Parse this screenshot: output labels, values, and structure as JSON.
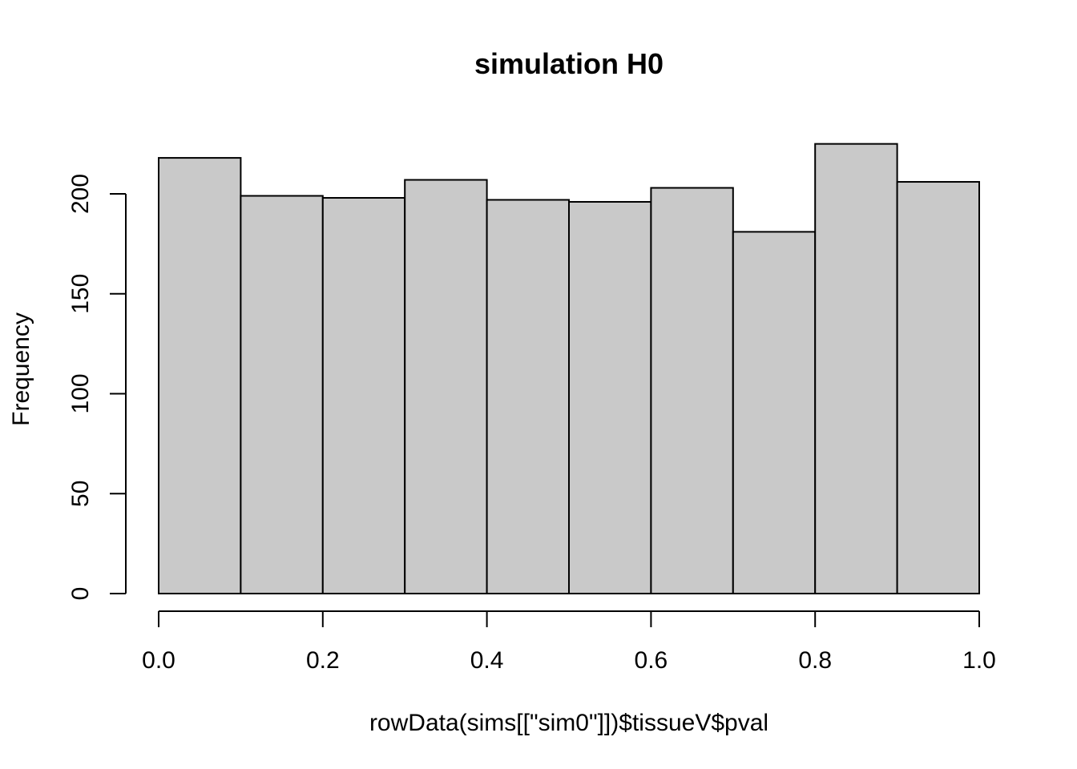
{
  "chart_data": {
    "type": "bar",
    "title": "simulation H0",
    "xlabel": "rowData(sims[[\"sim0\"]])$tissueV$pval",
    "ylabel": "Frequency",
    "bins": [
      {
        "x0": 0.0,
        "x1": 0.1,
        "count": 218
      },
      {
        "x0": 0.1,
        "x1": 0.2,
        "count": 199
      },
      {
        "x0": 0.2,
        "x1": 0.3,
        "count": 198
      },
      {
        "x0": 0.3,
        "x1": 0.4,
        "count": 207
      },
      {
        "x0": 0.4,
        "x1": 0.5,
        "count": 197
      },
      {
        "x0": 0.5,
        "x1": 0.6,
        "count": 196
      },
      {
        "x0": 0.6,
        "x1": 0.7,
        "count": 203
      },
      {
        "x0": 0.7,
        "x1": 0.8,
        "count": 181
      },
      {
        "x0": 0.8,
        "x1": 0.9,
        "count": 225
      },
      {
        "x0": 0.9,
        "x1": 1.0,
        "count": 206
      }
    ],
    "xlim": [
      0.0,
      1.0
    ],
    "ylim": [
      0,
      225
    ],
    "x_ticks": [
      0.0,
      0.2,
      0.4,
      0.6,
      0.8,
      1.0
    ],
    "x_tick_labels": [
      "0.0",
      "0.2",
      "0.4",
      "0.6",
      "0.8",
      "1.0"
    ],
    "y_ticks": [
      0,
      50,
      100,
      150,
      200
    ],
    "y_tick_labels": [
      "0",
      "50",
      "100",
      "150",
      "200"
    ],
    "bar_fill": "#c9c9c9",
    "bar_stroke": "#000000",
    "grid": false,
    "legend": "none"
  }
}
